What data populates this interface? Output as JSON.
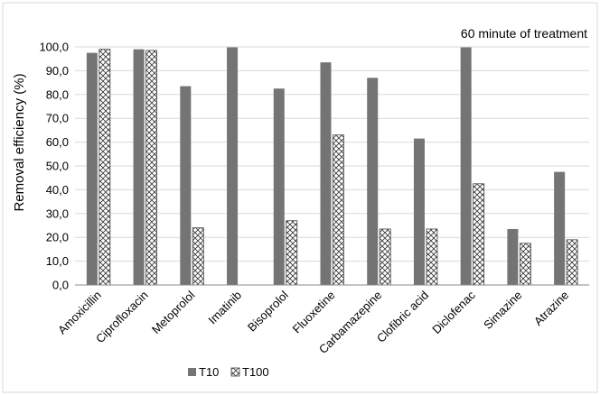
{
  "chart_data": {
    "type": "bar",
    "title": "",
    "annotation": "60 minute of treatment",
    "xlabel": "",
    "ylabel": "Removal efficiency (%)",
    "ylim": [
      0,
      100
    ],
    "yticks": [
      "0,0",
      "10,0",
      "20,0",
      "30,0",
      "40,0",
      "50,0",
      "60,0",
      "70,0",
      "80,0",
      "90,0",
      "100,0"
    ],
    "grid": true,
    "legend_position": "bottom-left",
    "categories": [
      "Amoxicillin",
      "Ciprofloxacin",
      "Metoprolol",
      "Imatinib",
      "Bisoprolol",
      "Fluoxetine",
      "Carbamazepine",
      "Clofibric acid",
      "Diclofenac",
      "Simazine",
      "Atrazine"
    ],
    "series": [
      {
        "name": "T10",
        "color": "#747474",
        "pattern": "solid",
        "values": [
          97.5,
          99.0,
          83.5,
          99.8,
          82.5,
          93.5,
          87.0,
          61.5,
          99.8,
          23.5,
          47.5
        ]
      },
      {
        "name": "T100",
        "color": "#ffffff",
        "pattern": "crosshatch",
        "values": [
          99.0,
          98.5,
          24.0,
          0,
          27.0,
          63.0,
          23.5,
          23.5,
          42.5,
          17.5,
          19.0
        ]
      }
    ]
  }
}
